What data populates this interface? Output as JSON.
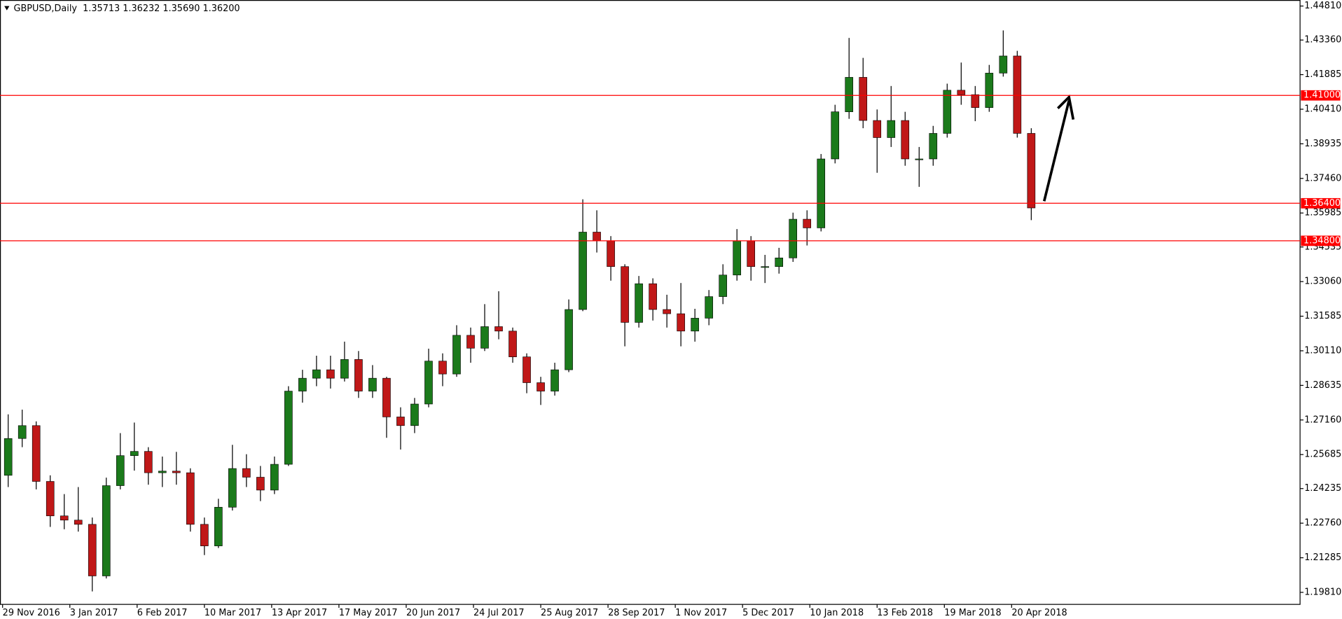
{
  "chart_data": {
    "type": "candlestick",
    "title": "GBPUSD,Daily  1.35713 1.36232 1.35690 1.36200",
    "x": [
      2,
      7,
      12,
      17,
      22,
      27,
      32,
      37,
      42,
      47,
      52,
      57,
      62,
      67,
      72,
      77,
      82,
      87,
      92,
      97,
      102,
      107,
      112,
      117,
      122,
      127,
      132,
      137,
      142,
      147,
      152,
      157,
      162,
      167,
      172,
      177,
      182,
      187,
      192,
      197,
      202,
      207,
      212,
      217,
      222,
      227,
      232,
      237,
      242,
      247,
      252,
      257,
      262,
      267,
      272,
      277,
      282,
      287,
      292,
      297,
      302,
      307,
      312,
      317,
      322,
      327,
      332,
      337,
      342,
      347,
      352,
      357,
      362,
      367
    ],
    "open": [
      1.248,
      1.2637,
      1.2692,
      1.2454,
      1.2307,
      1.2289,
      1.2271,
      1.2051,
      1.2436,
      1.2564,
      1.2582,
      1.2491,
      1.2498,
      1.2491,
      1.2271,
      1.2179,
      1.2344,
      1.2509,
      1.2472,
      1.2417,
      1.2527,
      1.2839,
      1.2894,
      1.293,
      1.2894,
      1.2974,
      1.2839,
      1.2894,
      1.2729,
      1.2692,
      1.2784,
      1.2967,
      1.2912,
      1.3077,
      1.3022,
      1.3114,
      1.3095,
      1.2985,
      1.2875,
      1.2839,
      1.293,
      1.3187,
      1.3517,
      1.348,
      1.337,
      1.3132,
      1.3297,
      1.3187,
      1.3169,
      1.3095,
      1.315,
      1.3242,
      1.3334,
      1.348,
      1.337,
      1.337,
      1.3407,
      1.3572,
      1.3535,
      1.3829,
      1.403,
      1.4177,
      1.3993,
      1.392,
      1.3993,
      1.3829,
      1.3829,
      1.3938,
      1.4122,
      1.4103,
      1.4048,
      1.4195,
      1.4268,
      1.3938
    ],
    "high": [
      1.274,
      1.276,
      1.271,
      1.248,
      1.24,
      1.243,
      1.23,
      1.247,
      1.266,
      1.2705,
      1.26,
      1.256,
      1.258,
      1.251,
      1.23,
      1.238,
      1.261,
      1.257,
      1.252,
      1.256,
      1.286,
      1.293,
      1.299,
      1.299,
      1.305,
      1.301,
      1.295,
      1.29,
      1.277,
      1.281,
      1.302,
      1.3,
      1.312,
      1.311,
      1.321,
      1.3265,
      1.311,
      1.3,
      1.29,
      1.296,
      1.323,
      1.3657,
      1.361,
      1.35,
      1.338,
      1.333,
      1.332,
      1.325,
      1.33,
      1.319,
      1.327,
      1.338,
      1.353,
      1.35,
      1.342,
      1.345,
      1.36,
      1.361,
      1.385,
      1.406,
      1.4345,
      1.426,
      1.404,
      1.414,
      1.403,
      1.388,
      1.397,
      1.415,
      1.424,
      1.414,
      1.423,
      1.4377,
      1.429,
      1.396
    ],
    "low": [
      1.243,
      1.26,
      1.242,
      1.226,
      1.225,
      1.224,
      1.1985,
      1.204,
      1.242,
      1.25,
      1.244,
      1.243,
      1.244,
      1.224,
      1.214,
      1.217,
      1.233,
      1.243,
      1.237,
      1.24,
      1.252,
      1.279,
      1.286,
      1.285,
      1.288,
      1.281,
      1.281,
      1.264,
      1.259,
      1.266,
      1.277,
      1.286,
      1.29,
      1.296,
      1.301,
      1.306,
      1.296,
      1.283,
      1.278,
      1.282,
      1.292,
      1.318,
      1.343,
      1.331,
      1.303,
      1.311,
      1.314,
      1.311,
      1.303,
      1.305,
      1.312,
      1.321,
      1.331,
      1.331,
      1.33,
      1.334,
      1.339,
      1.346,
      1.352,
      1.381,
      1.4,
      1.396,
      1.377,
      1.388,
      1.38,
      1.371,
      1.38,
      1.392,
      1.406,
      1.399,
      1.403,
      1.418,
      1.392,
      1.3568
    ],
    "close": [
      1.2637,
      1.2692,
      1.2454,
      1.2307,
      1.2289,
      1.2271,
      1.2051,
      1.2436,
      1.2564,
      1.2582,
      1.2491,
      1.2498,
      1.2491,
      1.2271,
      1.2179,
      1.2344,
      1.2509,
      1.2472,
      1.2417,
      1.2527,
      1.2839,
      1.2894,
      1.293,
      1.2894,
      1.2974,
      1.2839,
      1.2894,
      1.2729,
      1.2692,
      1.2784,
      1.2967,
      1.2912,
      1.3077,
      1.3022,
      1.3114,
      1.3095,
      1.2985,
      1.2875,
      1.2839,
      1.293,
      1.3187,
      1.3517,
      1.348,
      1.337,
      1.3132,
      1.3297,
      1.3187,
      1.3169,
      1.3095,
      1.315,
      1.3242,
      1.3334,
      1.348,
      1.337,
      1.337,
      1.3407,
      1.3572,
      1.3535,
      1.3829,
      1.403,
      1.4177,
      1.3993,
      1.392,
      1.3993,
      1.3829,
      1.3829,
      1.3938,
      1.4122,
      1.4103,
      1.4048,
      1.4195,
      1.4268,
      1.3938,
      1.362
    ],
    "up_color": "#1b7a1b",
    "down_color": "#c01818",
    "wick_color": "#000000",
    "xlim": [
      -0.92,
      462.9
    ],
    "xticks": [
      {
        "value": 0,
        "label": "29 Nov 2016"
      },
      {
        "value": 24,
        "label": "3 Jan 2017"
      },
      {
        "value": 48,
        "label": "6 Feb 2017"
      },
      {
        "value": 72,
        "label": "10 Mar 2017"
      },
      {
        "value": 96,
        "label": "13 Apr 2017"
      },
      {
        "value": 120,
        "label": "17 May 2017"
      },
      {
        "value": 144,
        "label": "20 Jun 2017"
      },
      {
        "value": 168,
        "label": "24 Jul 2017"
      },
      {
        "value": 192,
        "label": "25 Aug 2017"
      },
      {
        "value": 216,
        "label": "28 Sep 2017"
      },
      {
        "value": 240,
        "label": "1 Nov 2017"
      },
      {
        "value": 264,
        "label": "5 Dec 2017"
      },
      {
        "value": 288,
        "label": "10 Jan 2018"
      },
      {
        "value": 312,
        "label": "13 Feb 2018"
      },
      {
        "value": 336,
        "label": "19 Mar 2018"
      },
      {
        "value": 360,
        "label": "20 Apr 2018"
      }
    ],
    "ylim": [
      1.19297,
      1.45067
    ],
    "yticks": [
      {
        "value": 1.4481,
        "label": "1.44810"
      },
      {
        "value": 1.4336,
        "label": "1.43360"
      },
      {
        "value": 1.41885,
        "label": "1.41885"
      },
      {
        "value": 1.4041,
        "label": "1.40410"
      },
      {
        "value": 1.38935,
        "label": "1.38935"
      },
      {
        "value": 1.3746,
        "label": "1.37460"
      },
      {
        "value": 1.35985,
        "label": "1.35985"
      },
      {
        "value": 1.34535,
        "label": "1.34535"
      },
      {
        "value": 1.3306,
        "label": "1.33060"
      },
      {
        "value": 1.31585,
        "label": "1.31585"
      },
      {
        "value": 1.3011,
        "label": "1.30110"
      },
      {
        "value": 1.28635,
        "label": "1.28635"
      },
      {
        "value": 1.2716,
        "label": "1.27160"
      },
      {
        "value": 1.25685,
        "label": "1.25685"
      },
      {
        "value": 1.24235,
        "label": "1.24235"
      },
      {
        "value": 1.2276,
        "label": "1.22760"
      },
      {
        "value": 1.21285,
        "label": "1.21285"
      },
      {
        "value": 1.1981,
        "label": "1.19810"
      }
    ],
    "levels": [
      {
        "value": 1.41,
        "label": "1.41000"
      },
      {
        "value": 1.364,
        "label": "1.36400"
      },
      {
        "value": 1.348,
        "label": "1.34800"
      }
    ],
    "level_color": "#ff0000",
    "grid": false
  }
}
